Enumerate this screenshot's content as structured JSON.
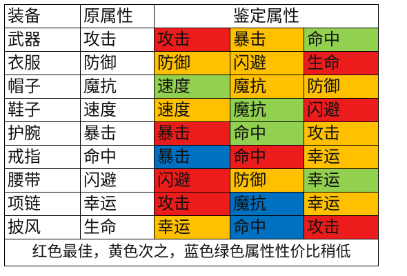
{
  "colors": {
    "red": "#ED1C1C",
    "yellow": "#FFC000",
    "green": "#92D050",
    "blue": "#0070C0"
  },
  "header": {
    "equipment": "装备",
    "original": "原属性",
    "identified": "鉴定属性"
  },
  "rows": [
    {
      "equipment": "武器",
      "original": "攻击",
      "attrs": [
        {
          "text": "攻击",
          "color": "red"
        },
        {
          "text": "暴击",
          "color": "yellow"
        },
        {
          "text": "命中",
          "color": "green"
        }
      ]
    },
    {
      "equipment": "衣服",
      "original": "防御",
      "attrs": [
        {
          "text": "防御",
          "color": "yellow"
        },
        {
          "text": "闪避",
          "color": "yellow"
        },
        {
          "text": "生命",
          "color": "red"
        }
      ]
    },
    {
      "equipment": "帽子",
      "original": "魔抗",
      "attrs": [
        {
          "text": "速度",
          "color": "green"
        },
        {
          "text": "魔抗",
          "color": "yellow"
        },
        {
          "text": "防御",
          "color": "yellow"
        }
      ]
    },
    {
      "equipment": "鞋子",
      "original": "速度",
      "attrs": [
        {
          "text": "速度",
          "color": "yellow"
        },
        {
          "text": "魔抗",
          "color": "green"
        },
        {
          "text": "闪避",
          "color": "red"
        }
      ]
    },
    {
      "equipment": "护腕",
      "original": "暴击",
      "attrs": [
        {
          "text": "暴击",
          "color": "red"
        },
        {
          "text": "命中",
          "color": "green"
        },
        {
          "text": "攻击",
          "color": "yellow"
        }
      ]
    },
    {
      "equipment": "戒指",
      "original": "命中",
      "attrs": [
        {
          "text": "暴击",
          "color": "blue"
        },
        {
          "text": "命中",
          "color": "red"
        },
        {
          "text": "幸运",
          "color": "yellow"
        }
      ]
    },
    {
      "equipment": "腰带",
      "original": "闪避",
      "attrs": [
        {
          "text": "闪避",
          "color": "red"
        },
        {
          "text": "防御",
          "color": "yellow"
        },
        {
          "text": "幸运",
          "color": "green"
        }
      ]
    },
    {
      "equipment": "项链",
      "original": "幸运",
      "attrs": [
        {
          "text": "攻击",
          "color": "red"
        },
        {
          "text": "魔抗",
          "color": "blue"
        },
        {
          "text": "幸运",
          "color": "yellow"
        }
      ]
    },
    {
      "equipment": "披风",
      "original": "生命",
      "attrs": [
        {
          "text": "幸运",
          "color": "yellow"
        },
        {
          "text": "命中",
          "color": "blue"
        },
        {
          "text": "攻击",
          "color": "red"
        }
      ]
    }
  ],
  "footer": "红色最佳，黄色次之，蓝色绿色属性性价比稍低"
}
